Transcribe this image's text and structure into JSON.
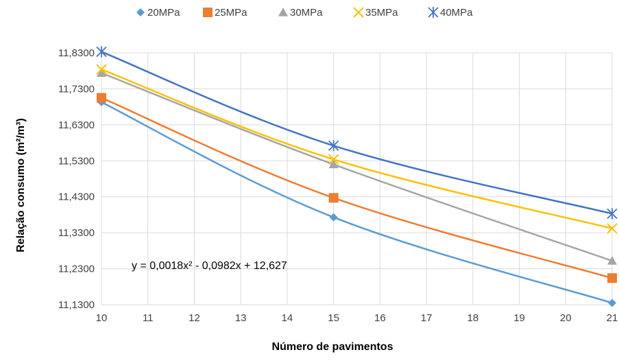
{
  "chart_data": {
    "type": "line",
    "x": [
      10,
      15,
      21
    ],
    "series": [
      {
        "name": "20MPa",
        "values": [
          11.693,
          11.373,
          11.135
        ],
        "color": "#5B9BD5",
        "marker": "diamond"
      },
      {
        "name": "25MPa",
        "values": [
          11.705,
          11.427,
          11.204
        ],
        "color": "#ED7D31",
        "marker": "square"
      },
      {
        "name": "30MPa",
        "values": [
          11.774,
          11.52,
          11.252
        ],
        "color": "#A5A5A5",
        "marker": "triangle"
      },
      {
        "name": "35MPa",
        "values": [
          11.784,
          11.534,
          11.342
        ],
        "color": "#FFC000",
        "marker": "x"
      },
      {
        "name": "40MPa",
        "values": [
          11.833,
          11.572,
          11.383
        ],
        "color": "#4472C4",
        "marker": "star"
      }
    ],
    "xlabel": "Número de pavimentos",
    "ylabel": "Relação consumo (m²/m³)",
    "xlim": [
      10,
      21
    ],
    "ylim": [
      11.13,
      11.83
    ],
    "xticks": [
      "10",
      "11",
      "12",
      "13",
      "14",
      "15",
      "16",
      "17",
      "18",
      "19",
      "20",
      "21"
    ],
    "yticks": [
      "11,1300",
      "11,2300",
      "11,3300",
      "11,4300",
      "11,5300",
      "11,6300",
      "11,7300",
      "11,8300"
    ],
    "grid": true,
    "legend_position": "top",
    "annotation": "y = 0,0018x² - 0,0982x + 12,627"
  }
}
